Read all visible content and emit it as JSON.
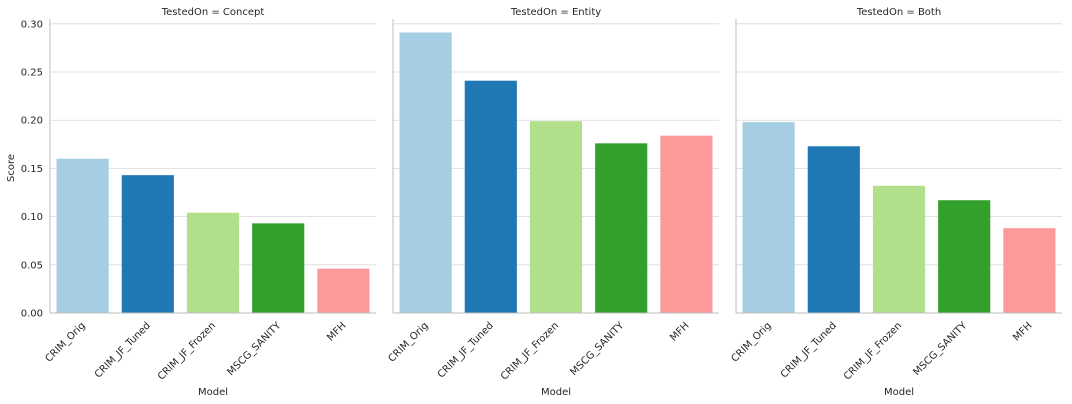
{
  "chart_data": [
    {
      "type": "bar",
      "title": "TestedOn = Concept",
      "xlabel": "Model",
      "ylabel": "Score",
      "categories": [
        "CRIM_Orig",
        "CRIM_JF_Tuned",
        "CRIM_JF_Frozen",
        "MSCG_SANITY",
        "MFH"
      ],
      "values": [
        0.16,
        0.143,
        0.104,
        0.093,
        0.046
      ],
      "ylim": [
        0,
        0.305
      ],
      "yticks": [
        "0.00",
        "0.05",
        "0.10",
        "0.15",
        "0.20",
        "0.25",
        "0.30"
      ],
      "grid": true
    },
    {
      "type": "bar",
      "title": "TestedOn = Entity",
      "xlabel": "Model",
      "ylabel": "",
      "categories": [
        "CRIM_Orig",
        "CRIM_JF_Tuned",
        "CRIM_JF_Frozen",
        "MSCG_SANITY",
        "MFH"
      ],
      "values": [
        0.291,
        0.241,
        0.199,
        0.176,
        0.184
      ],
      "ylim": [
        0,
        0.305
      ],
      "grid": true
    },
    {
      "type": "bar",
      "title": "TestedOn = Both",
      "xlabel": "Model",
      "ylabel": "",
      "categories": [
        "CRIM_Orig",
        "CRIM_JF_Tuned",
        "CRIM_JF_Frozen",
        "MSCG_SANITY",
        "MFH"
      ],
      "values": [
        0.198,
        0.173,
        0.132,
        0.117,
        0.088
      ],
      "ylim": [
        0,
        0.305
      ],
      "grid": true
    }
  ],
  "colors": [
    "#a6cee3",
    "#1f78b4",
    "#b2df8a",
    "#33a02c",
    "#fb9a99"
  ]
}
